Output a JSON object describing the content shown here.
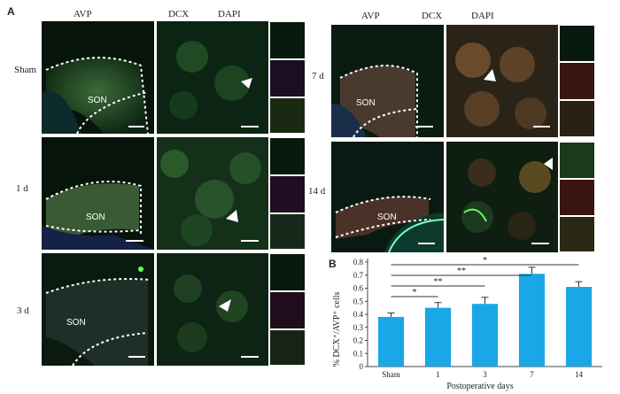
{
  "figure": {
    "panel_a": "A",
    "panel_b": "B",
    "channels": [
      "AVP",
      "DCX",
      "DAPI"
    ],
    "region_label": "SON",
    "groups": [
      "Sham",
      "1 d",
      "3 d",
      "7 d",
      "14 d"
    ]
  },
  "chart_data": {
    "type": "bar",
    "categories": [
      "Sham",
      "1",
      "3",
      "7",
      "14"
    ],
    "values": [
      0.38,
      0.45,
      0.48,
      0.71,
      0.61
    ],
    "errors": [
      0.03,
      0.04,
      0.05,
      0.05,
      0.04
    ],
    "xlabel": "Postoperative days",
    "ylabel": "% DCX⁺/AVP⁺ cells",
    "ylim": [
      0,
      0.8
    ],
    "yticks": [
      "0",
      "0.1",
      "0.2",
      "0.3",
      "0.4",
      "0.5",
      "0.6",
      "0.7",
      "0.8"
    ],
    "significance": [
      {
        "from": "Sham",
        "to": "3",
        "label": "*"
      },
      {
        "from": "Sham",
        "to": "7",
        "label": "**"
      },
      {
        "from": "Sham",
        "to": "14",
        "label": "**"
      },
      {
        "from": "Sham",
        "to": "3",
        "label": "*"
      }
    ],
    "bar_color": "#1aa7e8"
  }
}
